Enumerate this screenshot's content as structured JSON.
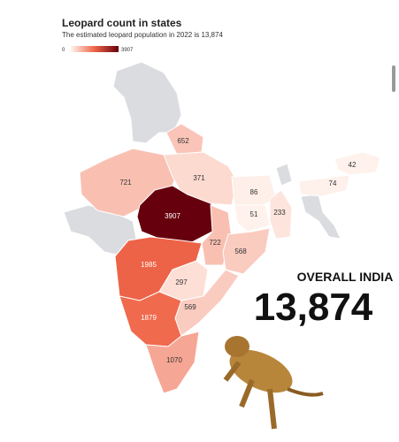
{
  "header": {
    "title": "Leopard count in states",
    "subtitle": "The estimated leopard population in 2022 is 13,874"
  },
  "legend": {
    "min": 0,
    "max": 3907
  },
  "regions": [
    {
      "value": 652
    },
    {
      "value": 721
    },
    {
      "value": 371
    },
    {
      "value": 86
    },
    {
      "value": 42
    },
    {
      "value": 74
    },
    {
      "value": 3907
    },
    {
      "value": 51
    },
    {
      "value": 233
    },
    {
      "value": 722
    },
    {
      "value": 568
    },
    {
      "value": 1985
    },
    {
      "value": 297
    },
    {
      "value": 569
    },
    {
      "value": 1879
    },
    {
      "value": 1070
    }
  ],
  "callout": {
    "label": "OVERALL INDIA",
    "total": "13,874"
  }
}
